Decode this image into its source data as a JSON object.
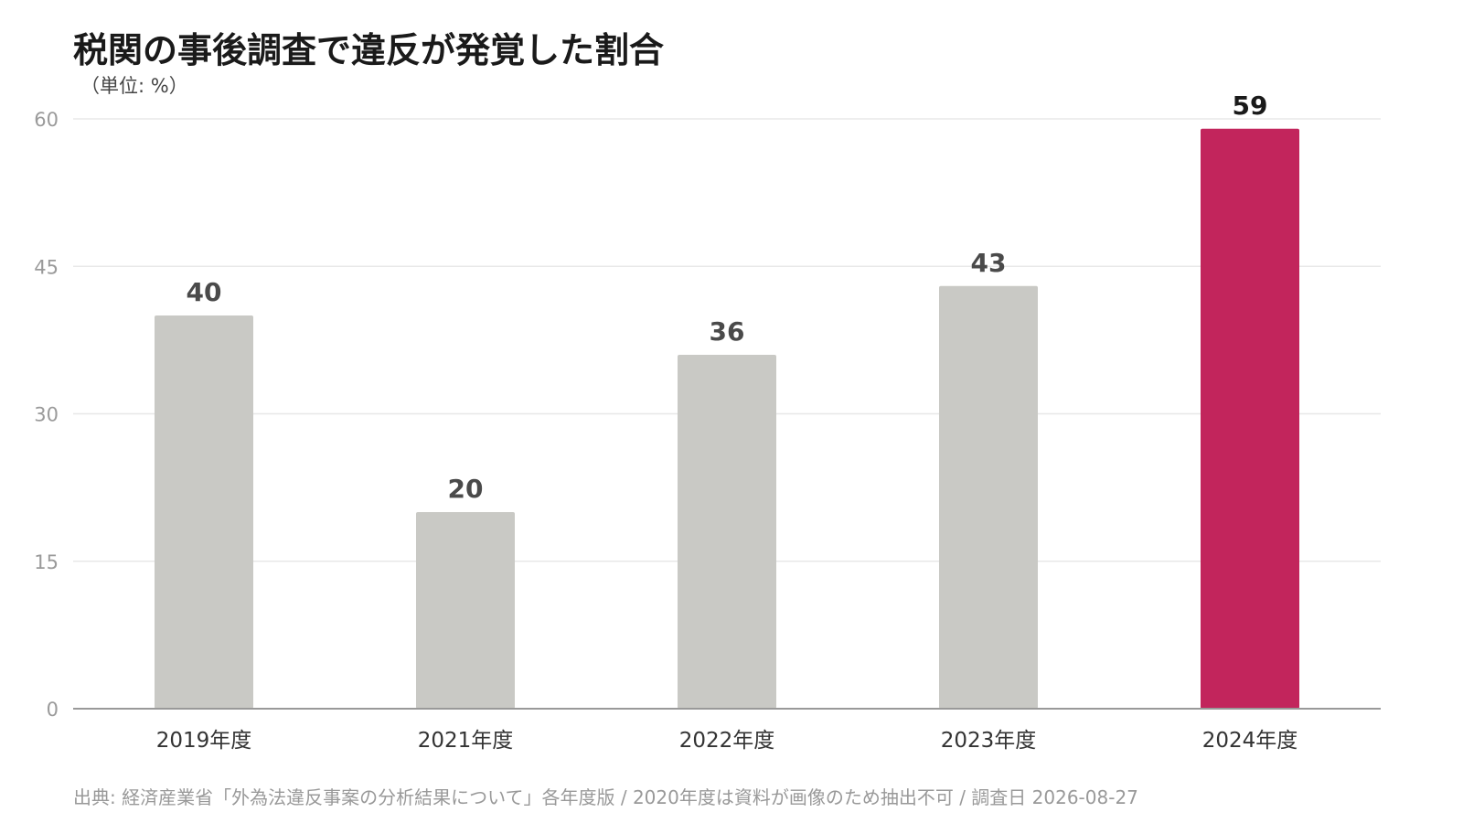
{
  "chart_data": {
    "type": "bar",
    "title": "税関の事後調査で違反が発覚した割合",
    "subtitle": "（単位: %）",
    "categories": [
      "2019年度",
      "2021年度",
      "2022年度",
      "2023年度",
      "2024年度"
    ],
    "values": [
      40,
      20,
      36,
      43,
      59
    ],
    "ylim": [
      0,
      60
    ],
    "yticks": [
      "0",
      "15",
      "30",
      "45",
      "60"
    ],
    "highlight_index": 4,
    "grid": true,
    "colors": {
      "bar": "#c9c9c5",
      "highlight": "#c2255c",
      "grid": "#e8e8e8",
      "axis": "#999999"
    },
    "source": "出典: 経済産業省「外為法違反事案の分析結果について」各年度版 / 2020年度は資料が画像のため抽出不可 / 調査日 2026-08-27"
  }
}
